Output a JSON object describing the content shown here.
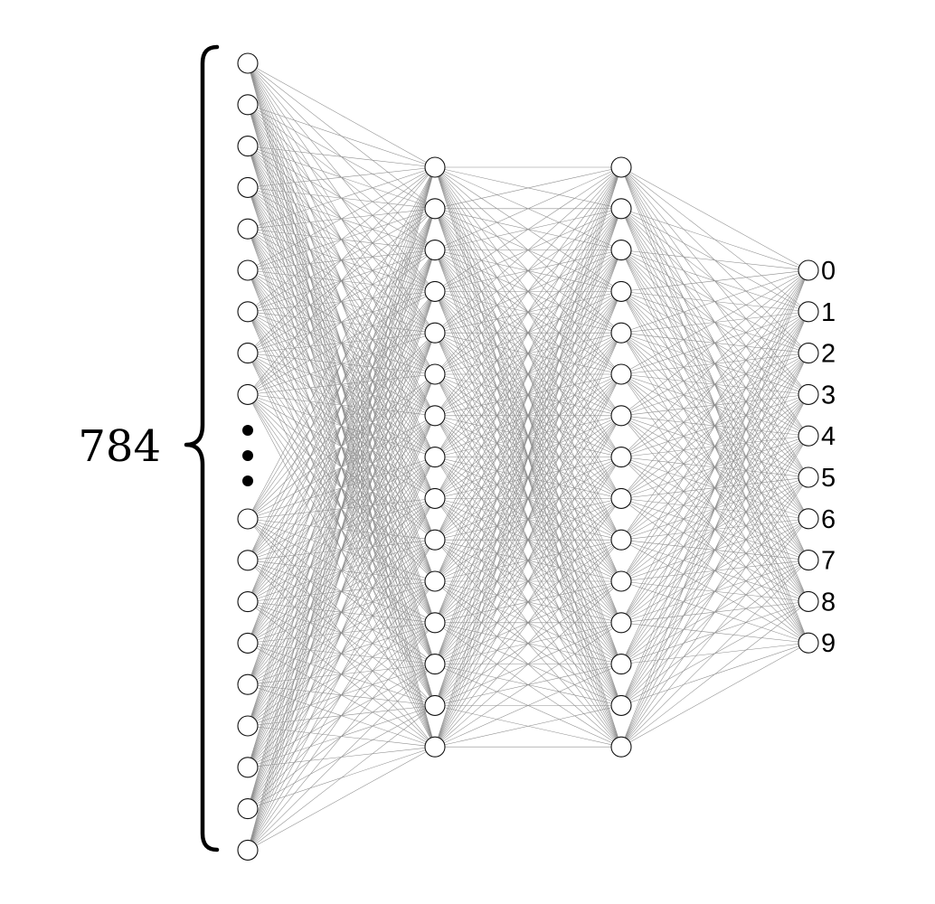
{
  "input_count_label": "784",
  "output_labels": [
    "0",
    "1",
    "2",
    "3",
    "4",
    "5",
    "6",
    "7",
    "8",
    "9"
  ],
  "layers": {
    "input": {
      "nodes_above_ellipsis": 9,
      "nodes_below_ellipsis": 9,
      "ellipsis_dots": 3
    },
    "hidden_1": {
      "nodes": 15
    },
    "hidden_2": {
      "nodes": 15
    },
    "output": {
      "nodes": 10
    }
  },
  "colors": {
    "node_fill": "#ffffff",
    "node_stroke": "#111111",
    "edge": "#8c8c8c",
    "text": "#000000"
  }
}
